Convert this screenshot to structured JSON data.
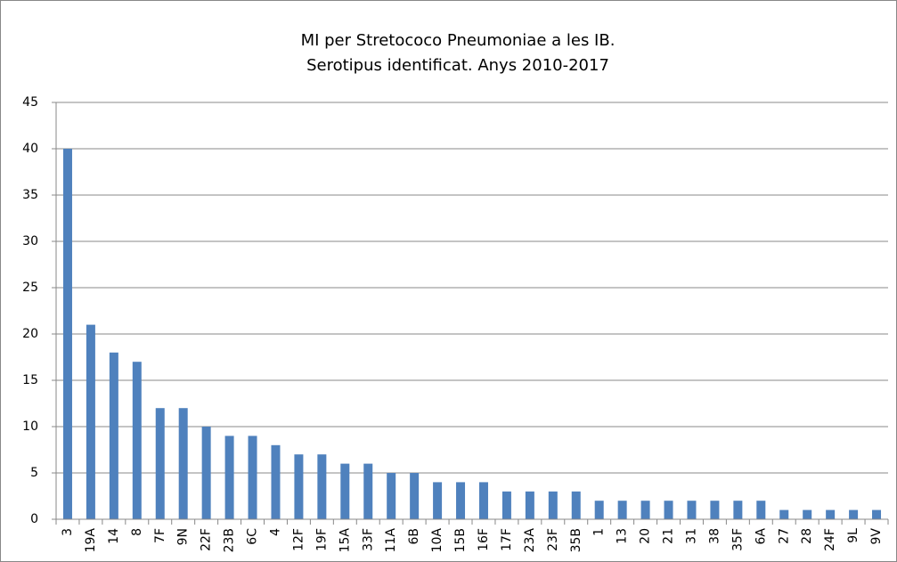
{
  "chart_data": {
    "type": "bar",
    "title": [
      "MI per Stretococo Pneumoniae a les IB.",
      "Serotipus identificat. Anys 2010-2017"
    ],
    "categories": [
      "3",
      "19A",
      "14",
      "8",
      "7F",
      "9N",
      "22F",
      "23B",
      "6C",
      "4",
      "12F",
      "19F",
      "15A",
      "33F",
      "11A",
      "6B",
      "10A",
      "15B",
      "16F",
      "17F",
      "23A",
      "23F",
      "35B",
      "1",
      "13",
      "20",
      "21",
      "31",
      "38",
      "35F",
      "6A",
      "27",
      "28",
      "24F",
      "9L",
      "9V"
    ],
    "values": [
      40,
      21,
      18,
      17,
      12,
      12,
      10,
      9,
      9,
      8,
      7,
      7,
      6,
      6,
      5,
      5,
      4,
      4,
      4,
      3,
      3,
      3,
      3,
      2,
      2,
      2,
      2,
      2,
      2,
      2,
      2,
      1,
      1,
      1,
      1,
      1
    ],
    "color": "#4f81bd",
    "ylim": [
      0,
      45
    ],
    "yticks": [
      0,
      5,
      10,
      15,
      20,
      25,
      30,
      35,
      40,
      45
    ],
    "grid": true
  }
}
